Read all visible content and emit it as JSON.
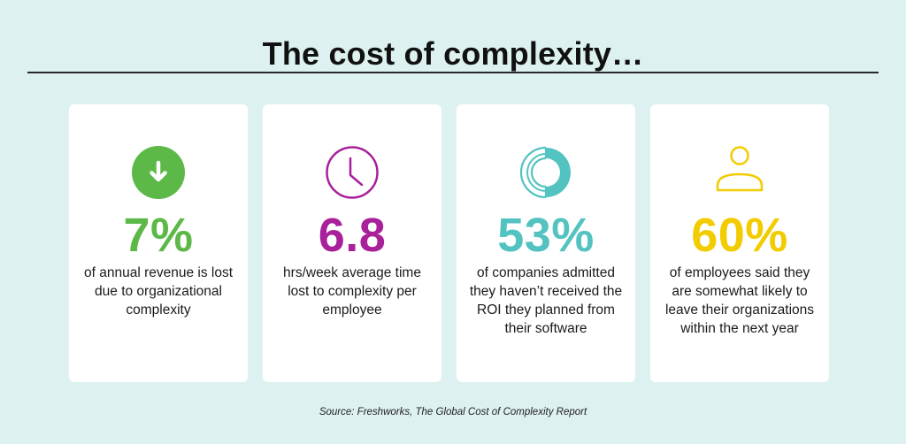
{
  "title": "The cost of complexity…",
  "colors": {
    "background": "#dcf1f0",
    "green": "#5cb948",
    "purple": "#a8209a",
    "teal": "#52c3c0",
    "yellow": "#f2cc00"
  },
  "cards": [
    {
      "icon": "down-arrow-circle-icon",
      "stat": "7%",
      "description": "of annual revenue is lost due to organizational complexity"
    },
    {
      "icon": "clock-icon",
      "stat": "6.8",
      "description": "hrs/week average time lost to complexity per employee"
    },
    {
      "icon": "donut-chart-icon",
      "stat": "53%",
      "description": "of companies admitted they haven’t received the ROI they planned from their software"
    },
    {
      "icon": "person-icon",
      "stat": "60%",
      "description": "of employees said they are somewhat likely to leave their organizations within the next year"
    }
  ],
  "source": "Source: Freshworks, The Global Cost of Complexity Report"
}
